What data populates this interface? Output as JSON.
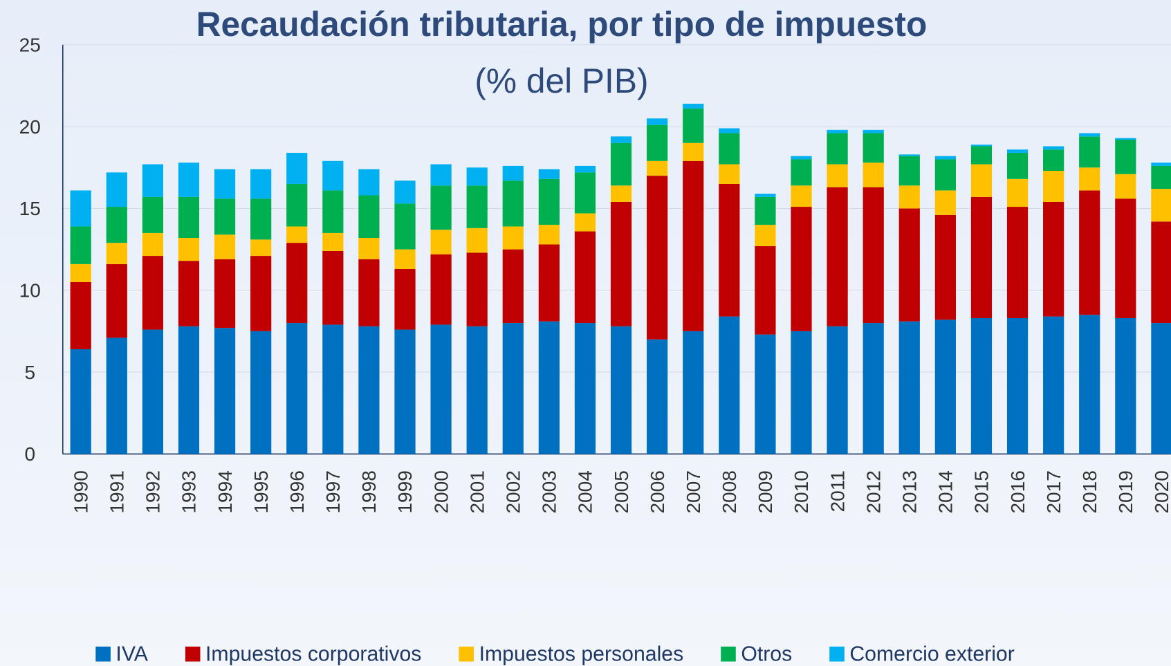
{
  "chart_data": {
    "type": "stacked_bar",
    "title": "Recaudación tributaria, por tipo de impuesto",
    "subtitle": "(% del PIB)",
    "categories": [
      "1990",
      "1991",
      "1992",
      "1993",
      "1994",
      "1995",
      "1996",
      "1997",
      "1998",
      "1999",
      "2000",
      "2001",
      "2002",
      "2003",
      "2004",
      "2005",
      "2006",
      "2007",
      "2008",
      "2009",
      "2010",
      "2011",
      "2012",
      "2013",
      "2014",
      "2015",
      "2016",
      "2017",
      "2018",
      "2019",
      "2020"
    ],
    "series": [
      {
        "name": "IVA",
        "color": "#0070c0",
        "values": [
          6.4,
          7.1,
          7.6,
          7.8,
          7.7,
          7.5,
          8.0,
          7.9,
          7.8,
          7.6,
          7.9,
          7.8,
          8.0,
          8.1,
          8.0,
          7.8,
          7.0,
          7.5,
          8.4,
          7.3,
          7.5,
          7.8,
          8.0,
          8.1,
          8.2,
          8.3,
          8.3,
          8.4,
          8.5,
          8.3,
          8.0
        ]
      },
      {
        "name": "Impuestos corporativos",
        "color": "#c00000",
        "values": [
          4.1,
          4.5,
          4.5,
          4.0,
          4.2,
          4.6,
          4.9,
          4.5,
          4.1,
          3.7,
          4.3,
          4.5,
          4.5,
          4.7,
          5.6,
          7.6,
          10.0,
          10.4,
          8.1,
          5.4,
          7.6,
          8.5,
          8.3,
          6.9,
          6.4,
          7.4,
          6.8,
          7.0,
          7.6,
          7.3,
          6.2
        ]
      },
      {
        "name": "Impuestos personales",
        "color": "#ffc000",
        "values": [
          1.1,
          1.3,
          1.4,
          1.4,
          1.5,
          1.0,
          1.0,
          1.1,
          1.3,
          1.2,
          1.5,
          1.5,
          1.4,
          1.2,
          1.1,
          1.0,
          0.9,
          1.1,
          1.2,
          1.3,
          1.3,
          1.4,
          1.5,
          1.4,
          1.5,
          2.0,
          1.7,
          1.9,
          1.4,
          1.5,
          2.0
        ]
      },
      {
        "name": "Otros",
        "color": "#00b050",
        "values": [
          2.3,
          2.2,
          2.2,
          2.5,
          2.2,
          2.5,
          2.6,
          2.6,
          2.6,
          2.8,
          2.7,
          2.6,
          2.8,
          2.8,
          2.5,
          2.6,
          2.2,
          2.1,
          1.9,
          1.7,
          1.6,
          1.9,
          1.8,
          1.8,
          1.9,
          1.1,
          1.6,
          1.3,
          1.9,
          2.1,
          1.4
        ]
      },
      {
        "name": "Comercio exterior",
        "color": "#00b0f0",
        "values": [
          2.2,
          2.1,
          2.0,
          2.1,
          1.8,
          1.8,
          1.9,
          1.8,
          1.6,
          1.4,
          1.3,
          1.1,
          0.9,
          0.6,
          0.4,
          0.4,
          0.4,
          0.3,
          0.3,
          0.2,
          0.2,
          0.2,
          0.2,
          0.1,
          0.2,
          0.1,
          0.2,
          0.2,
          0.2,
          0.1,
          0.2
        ]
      }
    ],
    "ylim": [
      0,
      25
    ],
    "yticks": [
      0,
      5,
      10,
      15,
      20,
      25
    ],
    "grid": true,
    "legend": "bottom"
  }
}
